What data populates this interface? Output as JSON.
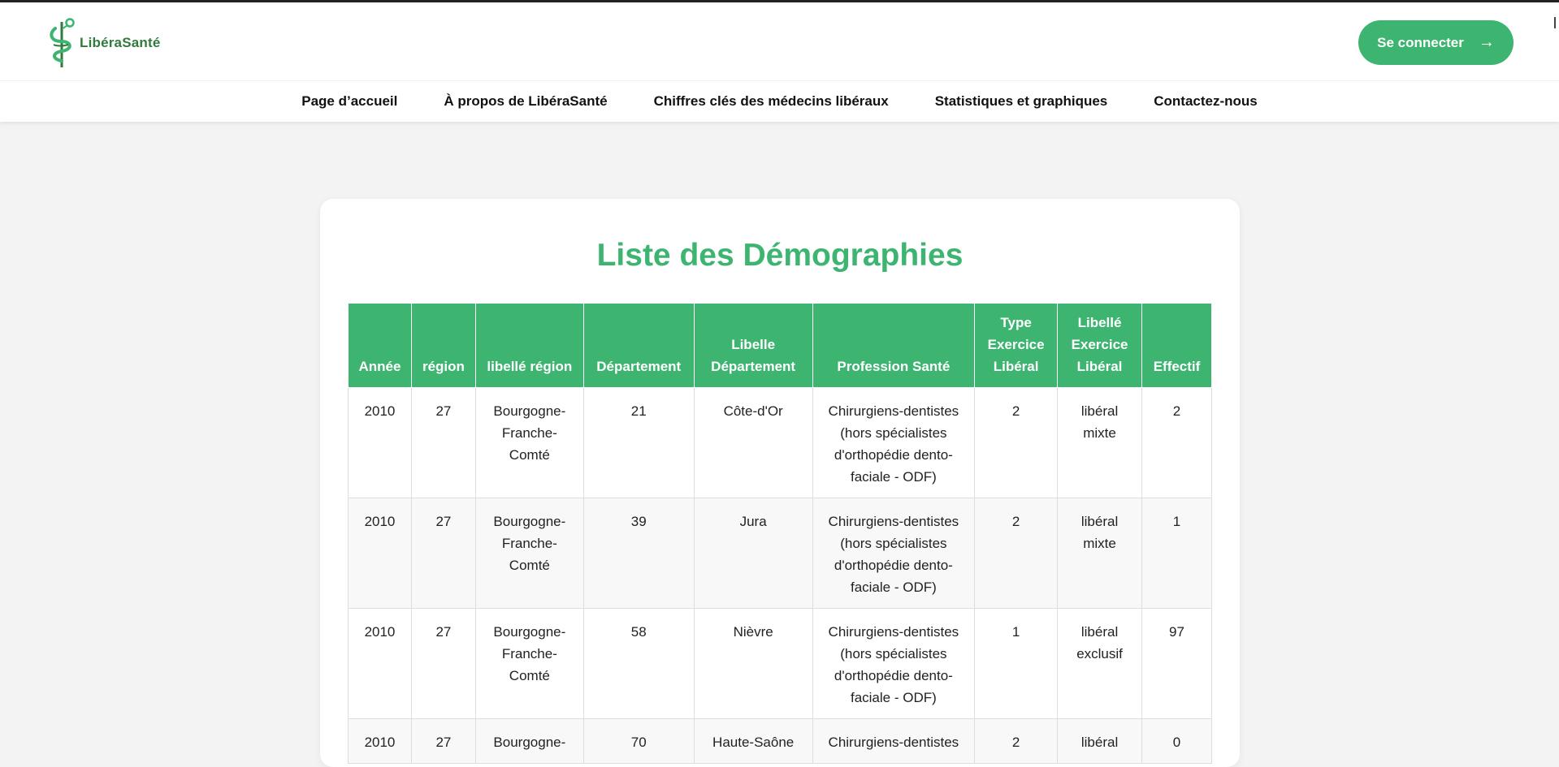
{
  "brand": {
    "name": "LibéraSanté",
    "color": "#3db570"
  },
  "header": {
    "login_label": "Se connecter",
    "login_arrow": "→"
  },
  "nav": [
    {
      "label": "Page d’accueil"
    },
    {
      "label": "À propos de LibéraSanté"
    },
    {
      "label": "Chiffres clés des médecins libéraux"
    },
    {
      "label": "Statistiques et graphiques"
    },
    {
      "label": "Contactez-nous"
    }
  ],
  "main": {
    "title": "Liste des Démographies",
    "table": {
      "headers": [
        "Année",
        "région",
        "libellé région",
        "Département",
        "Libelle Département",
        "Profession Santé",
        "Type Exercice Libéral",
        "Libellé Exercice Libéral",
        "Effectif"
      ],
      "rows": [
        [
          "2010",
          "27",
          "Bourgogne-Franche-Comté",
          "21",
          "Côte-d'Or",
          "Chirurgiens-dentistes (hors spécialistes d'orthopédie dento-faciale - ODF)",
          "2",
          "libéral mixte",
          "2"
        ],
        [
          "2010",
          "27",
          "Bourgogne-Franche-Comté",
          "39",
          "Jura",
          "Chirurgiens-dentistes (hors spécialistes d'orthopédie dento-faciale - ODF)",
          "2",
          "libéral mixte",
          "1"
        ],
        [
          "2010",
          "27",
          "Bourgogne-Franche-Comté",
          "58",
          "Nièvre",
          "Chirurgiens-dentistes (hors spécialistes d'orthopédie dento-faciale - ODF)",
          "1",
          "libéral exclusif",
          "97"
        ],
        [
          "2010",
          "27",
          "Bourgogne-",
          "70",
          "Haute-Saône",
          "Chirurgiens-dentistes",
          "2",
          "libéral",
          "0"
        ]
      ]
    }
  }
}
